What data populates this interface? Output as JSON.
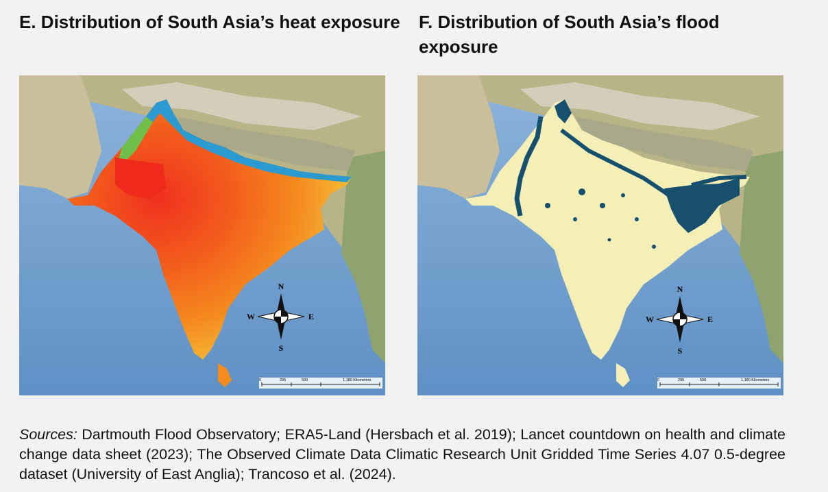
{
  "panels": [
    {
      "id": "heat",
      "title": "E. Distribution of South Asia’s heat exposure",
      "compass": {
        "n": "N",
        "s": "S",
        "e": "E",
        "w": "W"
      },
      "scale": {
        "ticks": [
          "0",
          "295",
          "590",
          "1,180 Kilometers"
        ]
      }
    },
    {
      "id": "flood",
      "title": "F. Distribution of South Asia’s flood exposure",
      "compass": {
        "n": "N",
        "s": "S",
        "e": "E",
        "w": "W"
      },
      "scale": {
        "ticks": [
          "0",
          "295",
          "590",
          "1,180 Kilometers"
        ]
      }
    }
  ],
  "sources": {
    "label": "Sources:",
    "text": " Dartmouth Flood Observatory; ERA5-Land (Hersbach et al. 2019); Lancet countdown on health and climate change data sheet (2023); The Observed Climate Data Climatic Research Unit Gridded Time Series 4.07 0.5-degree dataset (University of East Anglia); Trancoso et al. (2024)."
  },
  "colors": {
    "ocean": "#7aa6d2",
    "land": "#b9b487",
    "mountains": "#d7d1c3",
    "heat_high": "#f0301e",
    "heat_mid": "#f58a1e",
    "heat_low": "#f2c23a",
    "heat_cool": "#2a9ad0",
    "flood_land": "#f3efb6",
    "flood_water": "#17506e"
  }
}
